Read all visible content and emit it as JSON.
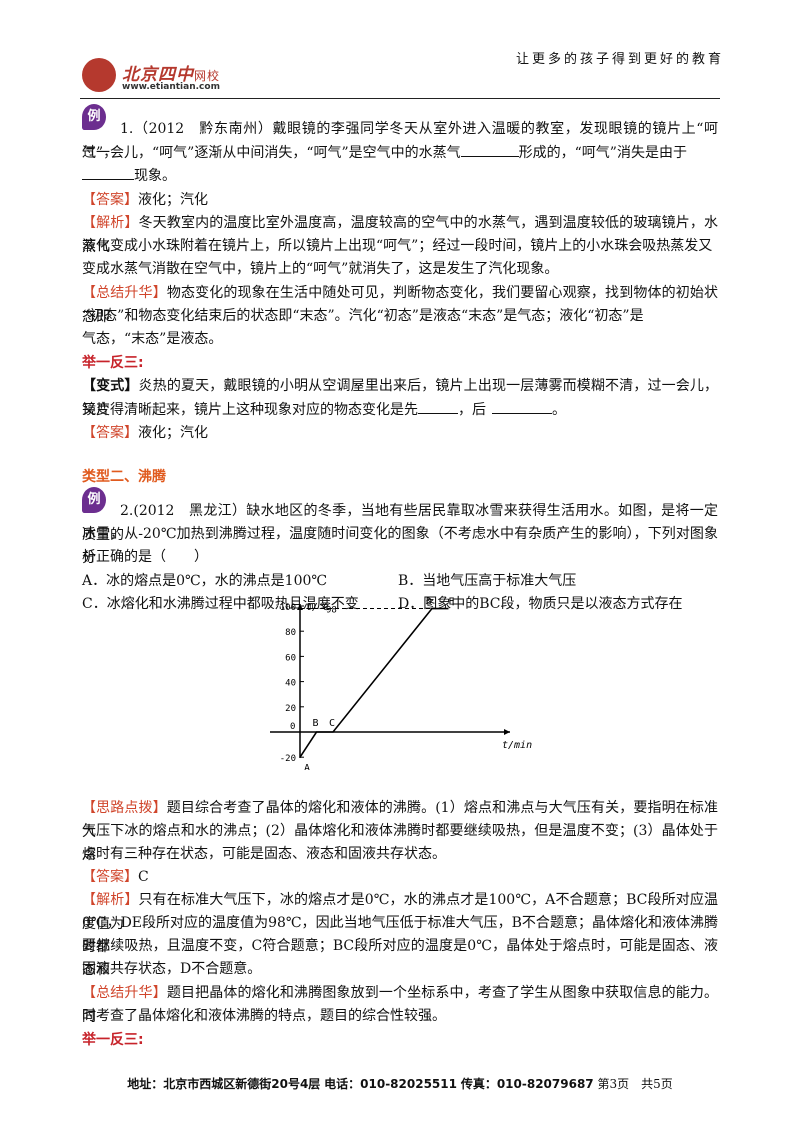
{
  "header": {
    "slogan": "让更多的孩子得到更好的教育",
    "logo_cn": "北京四中",
    "logo_cn_small": "网校",
    "logo_url": "www.etiantian.com"
  },
  "example_badge": "例",
  "q1": {
    "stem_a": "1.（2012　黔东南州）戴眼镜的李强同学冬天从室外进入温暖的教室，发现眼镜的镜片上“呵气”，",
    "stem_b_pre": "过一会儿，“呵气”逐渐从中间消失，“呵气”是空气中的水蒸气",
    "stem_b_post": "形成的，“呵气”消失是由于",
    "stem_c": "现象。",
    "answer_tag": "【答案】",
    "answer": "液化；汽化",
    "analysis_tag": "【解析】",
    "analysis_1": "冬天教室内的温度比室外温度高，温度较高的空气中的水蒸气，遇到温度较低的玻璃镜片，水蒸气",
    "analysis_2": "液化变成小水珠附着在镜片上，所以镜片上出现“呵气”；经过一段时间，镜片上的小水珠会吸热蒸发又",
    "analysis_3": "变成水蒸气消散在空气中，镜片上的“呵气”就消失了，这是发生了汽化现象。",
    "summary_tag": "【总结升华】",
    "summary_1": "物态变化的现象在生活中随处可见，判断物态变化，我们要留心观察，找到物体的初始状态即",
    "summary_2": "“初态”和物态变化结束后的状态即“末态”。汽化“初态”是液态“末态”是气态；液化“初态”是",
    "summary_3": "气态，“末态”是液态。"
  },
  "juyi_1": "举一反三:",
  "variant": {
    "tag": "【变式】",
    "line_1": "炎热的夏天，戴眼镜的小明从空调屋里出来后，镜片上出现一层薄雾而模糊不清，过一会儿，镜片",
    "line_2_pre": "又变得清晰起来，镜片上这种现象对应的物态变化是先",
    "line_2_mid": "，后",
    "line_2_post": "。",
    "answer_tag": "【答案】",
    "answer": "液化；汽化"
  },
  "section2_title": "类型二、沸腾",
  "q2": {
    "stem_1": "2.(2012　黑龙江）缺水地区的冬季，当地有些居民靠取冰雪来获得生活用水。如图，是将一定质量的",
    "stem_2": "冰雪，从-20℃加热到沸腾过程，温度随时间变化的图象（不考虑水中有杂质产生的影响），下列对图象分",
    "stem_3": "析正确的是（　　）",
    "opt_a": "A．冰的熔点是0℃，水的沸点是100℃",
    "opt_b": "B．当地气压高于标准大气压",
    "opt_c": "C．冰熔化和水沸腾过程中都吸热且温度不变",
    "opt_d": "D．图象中的BC段，物质只是以液态方式存在",
    "hint_tag": "【思路点拨】",
    "hint_1": "题目综合考查了晶体的熔化和液体的沸腾。(1）熔点和沸点与大气压有关，要指明在标准大",
    "hint_2": "气压下冰的熔点和水的沸点；(2）晶体熔化和液体沸腾时都要继续吸热，但是温度不变；(3）晶体处于熔",
    "hint_3": "点时有三种存在状态，可能是固态、液态和固液共存状态。",
    "answer_tag": "【答案】",
    "answer": "C",
    "analysis_tag": "【解析】",
    "analysis_1": "只有在标准大气压下，冰的熔点才是0℃，水的沸点才是100℃，A不合题意；BC段所对应温度值为",
    "analysis_2": "0℃，DE段所对应的温度值为98℃，因此当地气压低于标准大气压，B不合题意；晶体熔化和液体沸腾时都",
    "analysis_3": "要继续吸热，且温度不变，C符合题意；BC段所对应的温度是0℃，晶体处于熔点时，可能是固态、液态和",
    "analysis_4": "固液共存状态，D不合题意。",
    "summary_tag": "【总结升华】",
    "summary_1": "题目把晶体的熔化和沸腾图象放到一个坐标系中，考查了学生从图象中获取信息的能力。同",
    "summary_2": "时考查了晶体熔化和液体沸腾的特点，题目的综合性较强。"
  },
  "juyi_2": "举一反三:",
  "chart_data": {
    "type": "line",
    "ylabel": "t/℃",
    "xlabel": "t/min",
    "yticks": [
      -20,
      0,
      20,
      40,
      60,
      80,
      100
    ],
    "ylim": [
      -20,
      100
    ],
    "reference_line": {
      "value": 98,
      "label": "98",
      "style": "dashed"
    },
    "points": [
      {
        "label": "A",
        "x": 0,
        "y": -20
      },
      {
        "label": "B",
        "x": 1,
        "y": 0
      },
      {
        "label": "C",
        "x": 2,
        "y": 0
      },
      {
        "label": "D",
        "x": 8,
        "y": 98
      },
      {
        "label": "E",
        "x": 9,
        "y": 98
      }
    ],
    "origin_label": "0",
    "grid": false
  },
  "footer": {
    "address_label": "地址：",
    "address": "北京市西城区新德街20号4层",
    "phone_label": "电话：",
    "phone": "010-82025511",
    "fax_label": "传真：",
    "fax": "010-82079687",
    "page": "第3页　共5页"
  }
}
